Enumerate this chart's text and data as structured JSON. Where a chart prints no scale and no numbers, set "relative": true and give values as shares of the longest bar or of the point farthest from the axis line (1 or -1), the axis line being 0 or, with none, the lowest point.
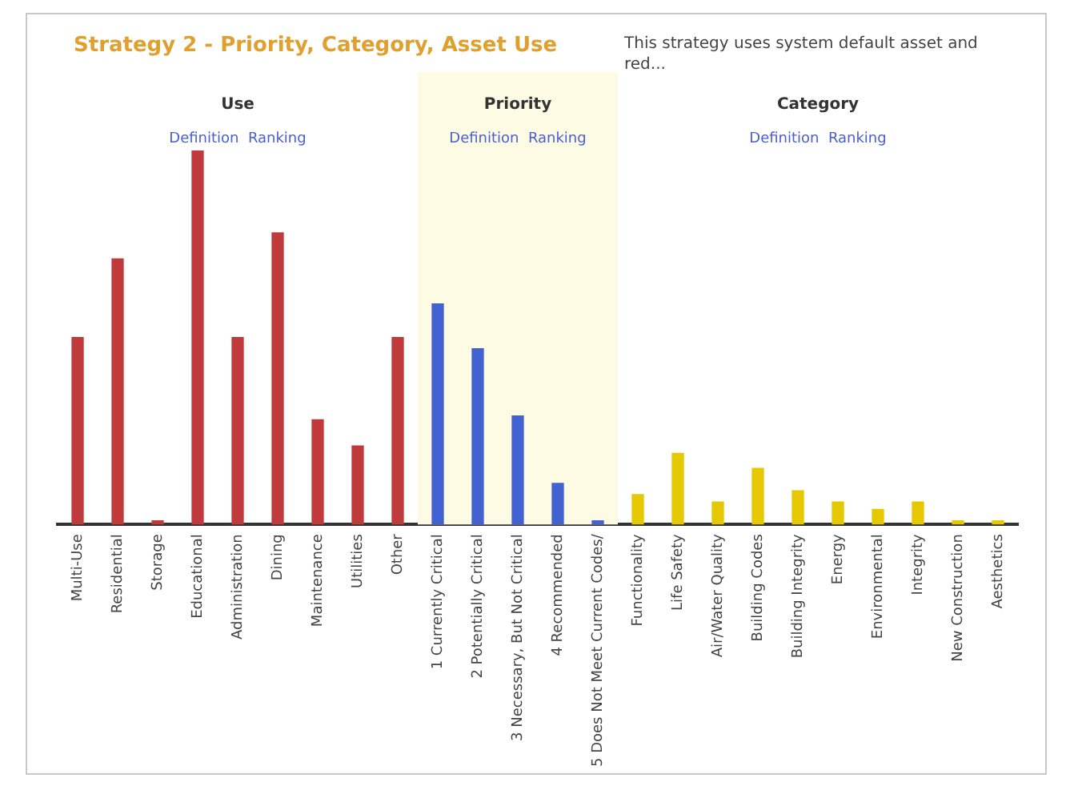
{
  "chart_data": {
    "type": "bar",
    "title": "Strategy 2 - Priority, Category, Asset Use",
    "subtitle": "This strategy uses system default asset and red...",
    "relative": true,
    "grid": false,
    "legend": false,
    "categories": [
      "Multi-Use",
      "Residential",
      "Storage",
      "Educational",
      "Administration",
      "Dining",
      "Maintenance",
      "Utilities",
      "Other",
      "1 Currently Critical",
      "2 Potentially Critical",
      "3 Necessary, But Not Critical",
      "4 Recommended",
      "5 Does Not Meet Current Codes/",
      "Functionality",
      "Life Safety",
      "Air/Water Quality",
      "Building Codes",
      "Building Integrity",
      "Energy",
      "Environmental",
      "Integrity",
      "New Construction",
      "Aesthetics"
    ],
    "series": [
      {
        "color": "#c0393b",
        "values": [
          0.5,
          0.71,
          0.01,
          1,
          0.5,
          0.78,
          0.28,
          0.21,
          0.5,
          null,
          null,
          null,
          null,
          null,
          null,
          null,
          null,
          null,
          null,
          null,
          null,
          null,
          null,
          null
        ]
      },
      {
        "color": "#4262d2",
        "values": [
          null,
          null,
          null,
          null,
          null,
          null,
          null,
          null,
          null,
          0.59,
          0.47,
          0.29,
          0.11,
          0.01,
          null,
          null,
          null,
          null,
          null,
          null,
          null,
          null,
          null,
          null
        ]
      },
      {
        "color": "#e6c800",
        "values": [
          null,
          null,
          null,
          null,
          null,
          null,
          null,
          null,
          null,
          null,
          null,
          null,
          null,
          null,
          0.08,
          0.19,
          0.06,
          0.15,
          0.09,
          0.06,
          0.04,
          0.06,
          0.01,
          0.01
        ]
      }
    ],
    "bands": [
      {
        "axis": "x",
        "from": "1 Currently Critical",
        "to": "5 Does Not Meet Current Codes/",
        "color": "#fdfbe4"
      }
    ],
    "annotations": [
      "Use",
      "Definition  Ranking",
      "Priority",
      "Definition  Ranking",
      "Category",
      "Definition  Ranking"
    ]
  }
}
